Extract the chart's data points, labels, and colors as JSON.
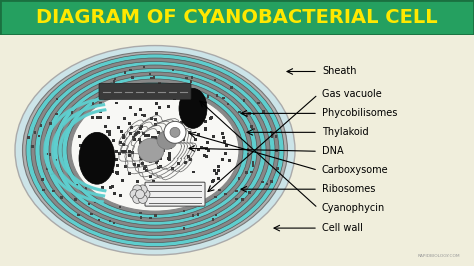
{
  "title": "DIAGRAM OF CYANOBACTERIAL CELL",
  "title_color": "#FFD700",
  "title_bg_top": "#3aaa6a",
  "title_bg_bot": "#2a7a40",
  "bg_color": "#3a6e3e",
  "content_bg": "#ffffff",
  "labels": [
    "Sheath",
    "Gas vacuole",
    "Phycobilisomes",
    "Thylakoid",
    "DNA",
    "Carboxysome",
    "Ribosomes",
    "Cyanophycin",
    "Cell wall"
  ],
  "label_fontsize": 7.0,
  "watermark": "RAPIDBIOLOGY.COM"
}
